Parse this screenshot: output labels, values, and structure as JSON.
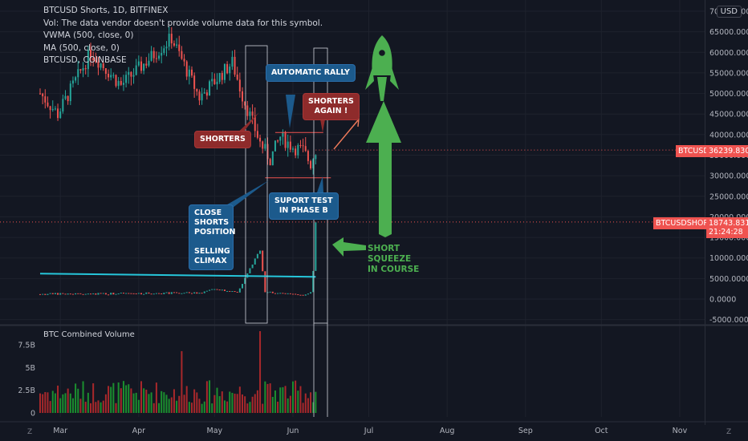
{
  "legend": {
    "line1": "BTCUSD Shorts, 1D, BITFINEX",
    "line2": "Vol: The data vendor doesn't provide volume data for this symbol.",
    "line3": "VWMA (500, close, 0)",
    "line4": "MA (500, close, 0)",
    "line5": "BTCUSD, COINBASE"
  },
  "currency_badge": "USD",
  "volume_pane_title": "BTC Combined Volume",
  "annotations": {
    "automatic_rally": "AUTOMATIC RALLY",
    "shorters": "SHORTERS",
    "shorters_again_1": "SHORTERS",
    "shorters_again_2": "AGAIN !",
    "close_shorts": [
      "CLOSE",
      "SHORTS",
      "POSITION",
      "",
      "SELLING",
      "CLIMAX"
    ],
    "support_test_1": "SUPORT TEST",
    "support_test_2": "IN PHASE B",
    "short_squeeze": [
      "SHORT",
      "SQUEEZE",
      "IN COURSE"
    ]
  },
  "price_tags": {
    "btcusd_label": "BTCUSD",
    "btcusd_value": "36239.8300",
    "shorts_label": "BTCUSDSHORTS",
    "shorts_value": "18743.8316",
    "shorts_countdown": "21:24:28"
  },
  "corner_labels": {
    "left": "Z",
    "right": "Z"
  },
  "colors": {
    "background": "#131722",
    "up": "#26a69a",
    "down": "#ef5350",
    "shorts_line": "#26c6da",
    "annotation_blue": "#1c5a8c",
    "annotation_red": "#8e2b2b",
    "green_arrow": "#4caf50",
    "orange_line": "#ef7a5a"
  },
  "chart_data": {
    "type": "candlestick",
    "title": "BTCUSD Shorts, 1D, BITFINEX",
    "y_axis_ticks": [
      "70000.0000",
      "65000.0000",
      "60000.0000",
      "55000.0000",
      "50000.0000",
      "45000.0000",
      "40000.0000",
      "35000.0000",
      "30000.0000",
      "25000.0000",
      "20000.0000",
      "15000.0000",
      "10000.0000",
      "5000.0000",
      "0.0000",
      "-5000.0000"
    ],
    "ylim": [
      -5000,
      70000
    ],
    "x_axis_ticks": [
      "Mar",
      "Apr",
      "May",
      "Jun",
      "Jul",
      "Aug",
      "Sep",
      "Oct",
      "Nov"
    ],
    "btcusd_anchors": [
      {
        "date": "2021-02-21",
        "price": 50000
      },
      {
        "date": "2021-02-28",
        "price": 45000
      },
      {
        "date": "2021-03-13",
        "price": 60000
      },
      {
        "date": "2021-03-25",
        "price": 52000
      },
      {
        "date": "2021-04-14",
        "price": 63500
      },
      {
        "date": "2021-04-25",
        "price": 49000
      },
      {
        "date": "2021-05-08",
        "price": 57500
      },
      {
        "date": "2021-05-12",
        "price": 49500
      },
      {
        "date": "2021-05-19",
        "price": 38000
      },
      {
        "date": "2021-05-23",
        "price": 34000
      },
      {
        "date": "2021-05-27",
        "price": 39500
      },
      {
        "date": "2021-06-01",
        "price": 37000
      },
      {
        "date": "2021-06-05",
        "price": 36000
      },
      {
        "date": "2021-06-08",
        "price": 33000
      },
      {
        "date": "2021-06-10",
        "price": 36240
      }
    ],
    "shorts_anchors": [
      {
        "date": "2021-02-21",
        "value": 1200
      },
      {
        "date": "2021-04-25",
        "value": 1500
      },
      {
        "date": "2021-05-02",
        "value": 2500
      },
      {
        "date": "2021-05-10",
        "value": 1600
      },
      {
        "date": "2021-05-19",
        "value": 12000
      },
      {
        "date": "2021-05-21",
        "value": 1800
      },
      {
        "date": "2021-06-05",
        "value": 800
      },
      {
        "date": "2021-06-08",
        "value": 1800
      },
      {
        "date": "2021-06-09",
        "value": 7000
      },
      {
        "date": "2021-06-10",
        "value": 18744
      }
    ],
    "vwma_line": {
      "start_value": 6200,
      "end_value": 5400
    },
    "volume": {
      "ylabel_ticks": [
        "7.5B",
        "5B",
        "2.5B",
        "0"
      ],
      "ylim": [
        0,
        9500000000
      ],
      "notable": [
        {
          "date": "2021-05-19",
          "value": 9000000000
        },
        {
          "date": "2021-04-18",
          "value": 6800000000
        }
      ]
    },
    "support_level": 29500,
    "resistance_level": 40500,
    "current_btcusd": 36239.83,
    "current_shorts": 18743.8316
  }
}
